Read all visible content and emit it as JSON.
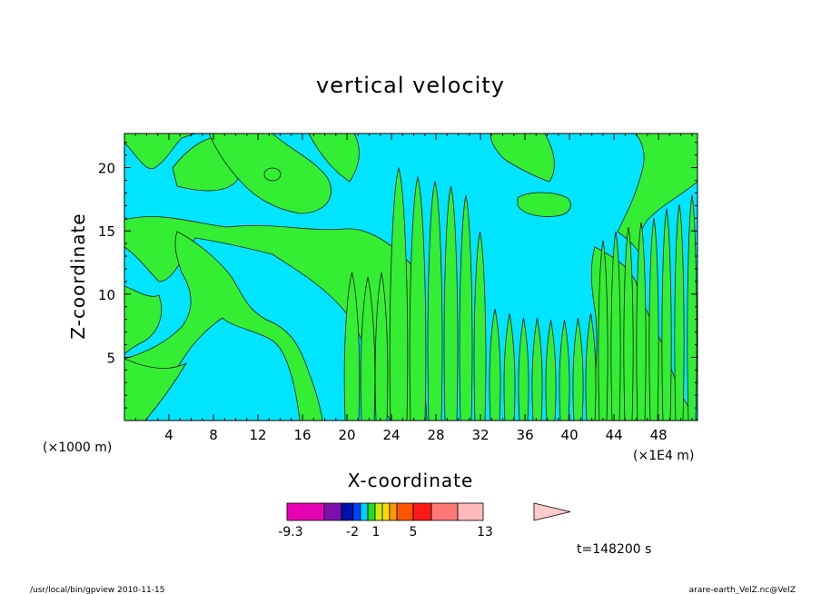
{
  "chart_data": {
    "type": "heatmap",
    "title": "vertical velocity",
    "xlabel": "X-coordinate",
    "ylabel": "Z-coordinate",
    "x_unit_left": "(×1000 m)",
    "x_unit_right": "(×1E4 m)",
    "xlim": [
      0,
      51.5
    ],
    "ylim": [
      0,
      22.7
    ],
    "x_ticks": [
      4,
      8,
      12,
      16,
      20,
      24,
      28,
      32,
      36,
      40,
      44,
      48
    ],
    "y_ticks": [
      5,
      10,
      15,
      20
    ],
    "field_classes": {
      "background": "#00e5ff",
      "positive": "#33ee33"
    },
    "colorbar": {
      "colors": [
        "#e600b4",
        "#7b10ad",
        "#0011aa",
        "#0044ff",
        "#00d2ff",
        "#22dd22",
        "#ccee00",
        "#ffd700",
        "#ff9900",
        "#ff5500",
        "#ff1a1a",
        "#ff7777",
        "#ffbbbb"
      ],
      "extend_color": "#ffcccc",
      "labels": [
        "-9.3",
        "-2",
        "1",
        "5",
        "13"
      ]
    },
    "time_label": "t=148200 s"
  },
  "footer": {
    "left": "/usr/local/bin/gpview   2010-11-15",
    "right": "arare-earth_VelZ.nc@VelZ"
  }
}
